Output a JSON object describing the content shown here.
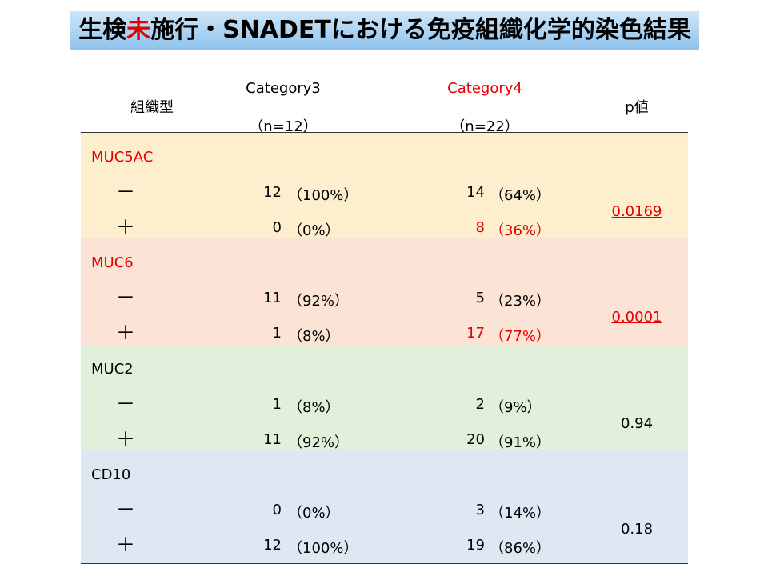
{
  "title": {
    "part1": "生検",
    "part2": "未",
    "part3": "施行・SNADETにおける免疫組織化学的染色結果"
  },
  "header": {
    "col_type": "組織型",
    "cat3_label": "Category3",
    "cat3_n": "（n=12）",
    "cat4_label": "Category4",
    "cat4_n": "（n=22）",
    "pvalue": "p値"
  },
  "markers": [
    {
      "name": "MUC5AC",
      "bg": "#fdefce",
      "name_red": true,
      "pvalue": "0.0169",
      "p_red": true,
      "rows": [
        {
          "sign": "－",
          "c3": "12",
          "c3p": "（100%）",
          "c4": "14",
          "c4p": "（64%）",
          "c4_red": false
        },
        {
          "sign": "＋",
          "c3": "0",
          "c3p": "（0%）",
          "c4": "8",
          "c4p": "（36%）",
          "c4_red": true
        }
      ]
    },
    {
      "name": "MUC6",
      "bg": "#fbe3d5",
      "name_red": true,
      "pvalue": "0.0001",
      "p_red": true,
      "rows": [
        {
          "sign": "－",
          "c3": "11",
          "c3p": "（92%）",
          "c4": "5",
          "c4p": "（23%）",
          "c4_red": false
        },
        {
          "sign": "＋",
          "c3": "1",
          "c3p": "（8%）",
          "c4": "17",
          "c4p": "（77%）",
          "c4_red": true
        }
      ]
    },
    {
      "name": "MUC2",
      "bg": "#e2efda",
      "name_red": false,
      "pvalue": "0.94",
      "p_red": false,
      "rows": [
        {
          "sign": "－",
          "c3": "1",
          "c3p": "（8%）",
          "c4": "2",
          "c4p": "（9%）",
          "c4_red": false
        },
        {
          "sign": "＋",
          "c3": "11",
          "c3p": "（92%）",
          "c4": "20",
          "c4p": "（91%）",
          "c4_red": false
        }
      ]
    },
    {
      "name": "CD10",
      "bg": "#dde8f3",
      "name_red": false,
      "pvalue": "0.18",
      "p_red": false,
      "rows": [
        {
          "sign": "－",
          "c3": "0",
          "c3p": "（0%）",
          "c4": "3",
          "c4p": "（14%）",
          "c4_red": false
        },
        {
          "sign": "＋",
          "c3": "12",
          "c3p": "（100%）",
          "c4": "19",
          "c4p": "（86%）",
          "c4_red": false
        }
      ]
    }
  ]
}
